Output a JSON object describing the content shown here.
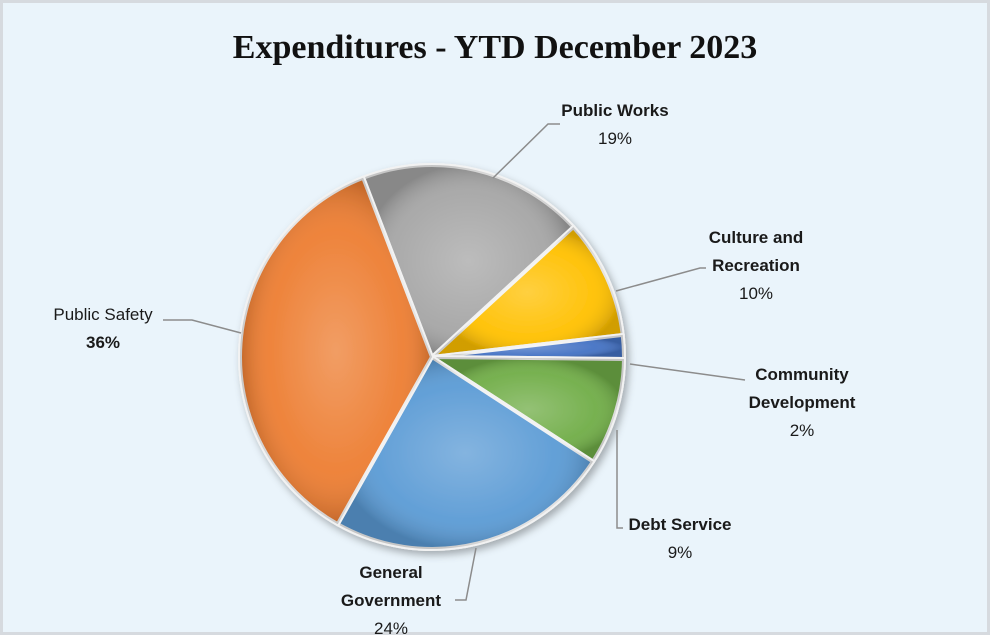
{
  "chart_data": {
    "type": "pie",
    "title": "Expenditures - YTD December 2023",
    "slices": [
      {
        "label": "Public Works",
        "label_lines": [
          "Public Works"
        ],
        "percent_label": "19%",
        "value": 19,
        "color": "#a6a6a6"
      },
      {
        "label": "Culture and Recreation",
        "label_lines": [
          "Culture and",
          "Recreation"
        ],
        "percent_label": "10%",
        "value": 10,
        "color": "#ffc000"
      },
      {
        "label": "Community Development",
        "label_lines": [
          "Community",
          "Development"
        ],
        "percent_label": "2%",
        "value": 2,
        "color": "#4472c4"
      },
      {
        "label": "Debt Service",
        "label_lines": [
          "Debt Service"
        ],
        "percent_label": "9%",
        "value": 9,
        "color": "#70ad47"
      },
      {
        "label": "General Government",
        "label_lines": [
          "General",
          "Government"
        ],
        "percent_label": "24%",
        "value": 24,
        "color": "#5b9bd5"
      },
      {
        "label": "Public Safety",
        "label_lines": [
          "Public Safety"
        ],
        "percent_label": "36%",
        "value": 36,
        "color": "#ed7d31"
      }
    ],
    "legend": "none"
  }
}
